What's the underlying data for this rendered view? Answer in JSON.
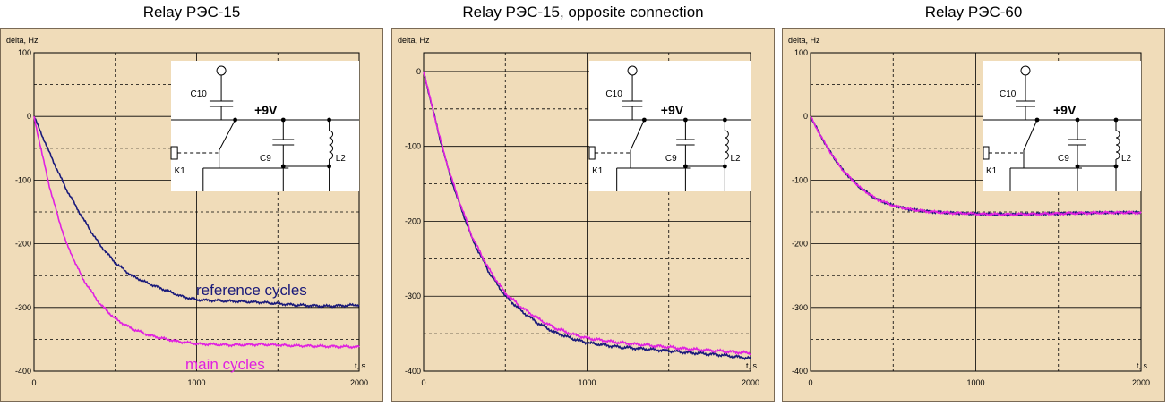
{
  "chart_data": [
    {
      "type": "line",
      "title": "Relay РЭС-15",
      "ylabel": "delta, Hz",
      "xlabel": "t, s",
      "xlim": [
        0,
        2000
      ],
      "ylim": [
        -400,
        100
      ],
      "x_ticks": [
        0,
        1000,
        2000
      ],
      "y_ticks": [
        100,
        0,
        -100,
        -200,
        -300,
        -400
      ],
      "grid": true,
      "series": [
        {
          "name": "reference cycles",
          "color": "#1a1a7a",
          "x": [
            0,
            50,
            100,
            150,
            200,
            300,
            400,
            500,
            600,
            700,
            800,
            900,
            1000,
            1200,
            1400,
            1600,
            1800,
            2000
          ],
          "y": [
            0,
            -30,
            -60,
            -88,
            -115,
            -160,
            -200,
            -230,
            -250,
            -262,
            -272,
            -282,
            -288,
            -290,
            -292,
            -296,
            -298,
            -296
          ]
        },
        {
          "name": "main cycles",
          "color": "#e020e0",
          "x": [
            0,
            50,
            100,
            150,
            200,
            300,
            400,
            500,
            600,
            700,
            800,
            900,
            1000,
            1200,
            1400,
            1600,
            1800,
            2000
          ],
          "y": [
            0,
            -60,
            -115,
            -160,
            -200,
            -255,
            -293,
            -318,
            -333,
            -343,
            -349,
            -354,
            -357,
            -359,
            -358,
            -360,
            -361,
            -362
          ]
        }
      ],
      "annotations": [
        "reference cycles",
        "main cycles"
      ]
    },
    {
      "type": "line",
      "title": "Relay РЭС-15, opposite connection",
      "ylabel": "delta, Hz",
      "xlabel": "t, s",
      "xlim": [
        0,
        2000
      ],
      "ylim": [
        -400,
        25
      ],
      "x_ticks": [
        0,
        1000,
        2000
      ],
      "y_ticks": [
        0,
        -100,
        -200,
        -300,
        -400
      ],
      "grid": true,
      "series": [
        {
          "color": "#1a1a7a",
          "x": [
            0,
            50,
            100,
            150,
            200,
            300,
            400,
            500,
            600,
            700,
            800,
            900,
            1000,
            1200,
            1400,
            1600,
            1800,
            2000
          ],
          "y": [
            0,
            -45,
            -90,
            -130,
            -165,
            -225,
            -268,
            -300,
            -320,
            -336,
            -348,
            -356,
            -362,
            -368,
            -371,
            -375,
            -378,
            -383
          ]
        },
        {
          "color": "#e020e0",
          "x": [
            0,
            50,
            100,
            150,
            200,
            300,
            400,
            500,
            600,
            700,
            800,
            900,
            1000,
            1200,
            1400,
            1600,
            1800,
            2000
          ],
          "y": [
            0,
            -45,
            -89,
            -128,
            -162,
            -222,
            -264,
            -296,
            -315,
            -330,
            -342,
            -350,
            -356,
            -362,
            -366,
            -370,
            -373,
            -376
          ]
        }
      ]
    },
    {
      "type": "line",
      "title": "Relay РЭС-60",
      "ylabel": "delta, Hz",
      "xlabel": "t, s",
      "xlim": [
        0,
        2000
      ],
      "ylim": [
        -400,
        100
      ],
      "x_ticks": [
        0,
        1000,
        2000
      ],
      "y_ticks": [
        100,
        0,
        -100,
        -200,
        -300,
        -400
      ],
      "grid": true,
      "series": [
        {
          "color": "#1a1a7a",
          "x": [
            0,
            50,
            100,
            150,
            200,
            300,
            400,
            500,
            600,
            700,
            800,
            1000,
            1200,
            1400,
            1600,
            1800,
            2000
          ],
          "y": [
            0,
            -25,
            -48,
            -68,
            -86,
            -112,
            -130,
            -140,
            -146,
            -149,
            -151,
            -153,
            -154,
            -153,
            -152,
            -151,
            -151
          ]
        },
        {
          "color": "#e020e0",
          "x": [
            0,
            50,
            100,
            150,
            200,
            300,
            400,
            500,
            600,
            700,
            800,
            1000,
            1200,
            1400,
            1600,
            1800,
            2000
          ],
          "y": [
            0,
            -25,
            -48,
            -68,
            -86,
            -112,
            -130,
            -140,
            -146,
            -149,
            -151,
            -153,
            -154,
            -153,
            -152,
            -151,
            -151
          ]
        }
      ]
    }
  ],
  "schematic": {
    "capacitor_top": "C10",
    "supply": "+9V",
    "capacitor_mid": "C9",
    "inductor": "L2",
    "relay": "K1"
  }
}
